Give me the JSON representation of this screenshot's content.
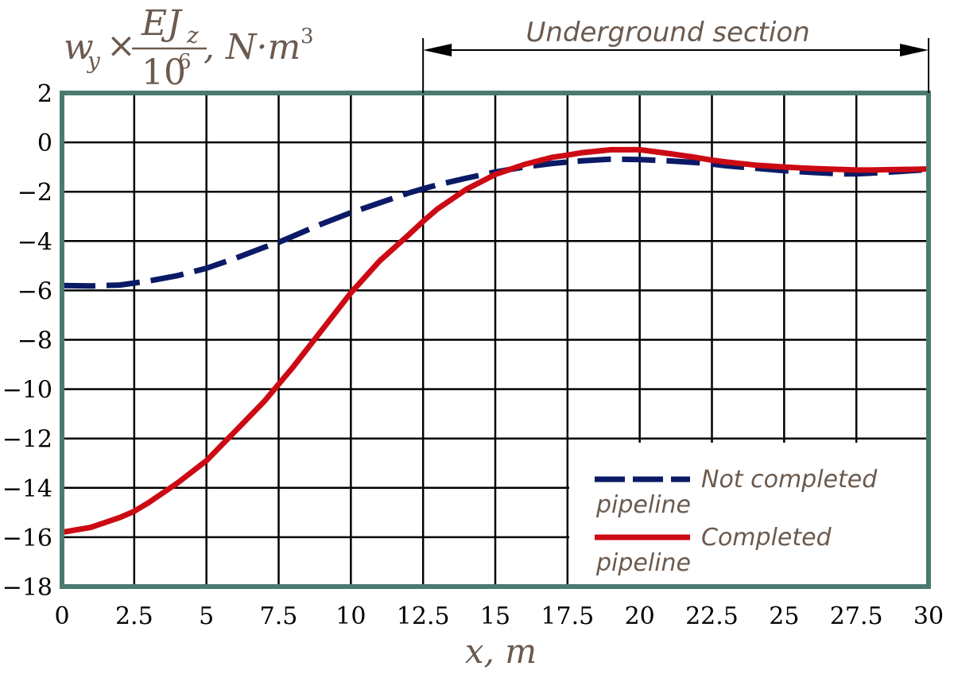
{
  "colors": {
    "frame": "#4a7a70",
    "grid": "#000000",
    "text": "#6b5a4e",
    "not_completed": "#0a1a66",
    "completed": "#cc0a14"
  },
  "chart_data": {
    "type": "line",
    "title": "",
    "ylabel": {
      "w": "w",
      "w_sub": "y",
      "times": "×",
      "frac_num": "EJ",
      "frac_num_sub": "z",
      "frac_den": "10",
      "frac_den_sup": "6",
      "unit": ", N·m",
      "unit_sup": "3"
    },
    "xlabel": "x, m",
    "xlim": [
      0,
      30
    ],
    "ylim": [
      -18,
      2
    ],
    "x_ticks": [
      0,
      2.5,
      5,
      7.5,
      10,
      12.5,
      15,
      17.5,
      20,
      22.5,
      25,
      27.5,
      30
    ],
    "x_tick_labels": [
      "0",
      "2.5",
      "5",
      "7.5",
      "10",
      "12.5",
      "15",
      "17.5",
      "20",
      "22.5",
      "25",
      "27.5",
      "30"
    ],
    "y_ticks": [
      2,
      0,
      -2,
      -4,
      -6,
      -8,
      -10,
      -12,
      -14,
      -16,
      -18
    ],
    "y_tick_labels": [
      "2",
      "0",
      "−2",
      "−4",
      "−6",
      "−8",
      "−10",
      "−12",
      "−14",
      "−16",
      "−18"
    ],
    "grid": true,
    "annotation": {
      "text": "Underground section",
      "x_start": 12.5,
      "x_end": 30
    },
    "legend": {
      "placement": "bottom-right",
      "entries": [
        {
          "line1": "Not completed",
          "line2": "pipeline",
          "series": 0
        },
        {
          "line1": "Completed",
          "line2": "pipeline",
          "series": 1
        }
      ]
    },
    "series": [
      {
        "name": "Not completed pipeline",
        "style": "dashed",
        "x": [
          0,
          1,
          2,
          2.5,
          3,
          4,
          5,
          6,
          7,
          7.5,
          8,
          9,
          10,
          11,
          12,
          12.5,
          13,
          14,
          15,
          16,
          17,
          17.5,
          18,
          19,
          20,
          21,
          22,
          22.5,
          23,
          24,
          25,
          26,
          27,
          27.5,
          28,
          29,
          30
        ],
        "y": [
          -5.8,
          -5.82,
          -5.78,
          -5.7,
          -5.62,
          -5.4,
          -5.1,
          -4.7,
          -4.25,
          -4.05,
          -3.8,
          -3.3,
          -2.85,
          -2.45,
          -2.05,
          -1.88,
          -1.72,
          -1.45,
          -1.2,
          -1.0,
          -0.85,
          -0.8,
          -0.75,
          -0.68,
          -0.7,
          -0.75,
          -0.82,
          -0.88,
          -0.95,
          -1.05,
          -1.15,
          -1.22,
          -1.28,
          -1.28,
          -1.25,
          -1.18,
          -1.1
        ]
      },
      {
        "name": "Completed pipeline",
        "style": "solid",
        "x": [
          0,
          1,
          2,
          2.5,
          3,
          4,
          5,
          6,
          7,
          7.5,
          8,
          9,
          10,
          11,
          12,
          12.5,
          13,
          14,
          15,
          16,
          17,
          17.5,
          18,
          19,
          20,
          21,
          22,
          22.5,
          23,
          24,
          25,
          26,
          27,
          27.5,
          28,
          29,
          30
        ],
        "y": [
          -15.8,
          -15.6,
          -15.2,
          -14.95,
          -14.6,
          -13.8,
          -12.9,
          -11.7,
          -10.5,
          -9.8,
          -9.1,
          -7.6,
          -6.1,
          -4.8,
          -3.75,
          -3.2,
          -2.7,
          -1.9,
          -1.3,
          -0.9,
          -0.6,
          -0.52,
          -0.42,
          -0.3,
          -0.3,
          -0.45,
          -0.62,
          -0.72,
          -0.8,
          -0.92,
          -1.0,
          -1.06,
          -1.1,
          -1.12,
          -1.12,
          -1.1,
          -1.08
        ]
      }
    ]
  }
}
